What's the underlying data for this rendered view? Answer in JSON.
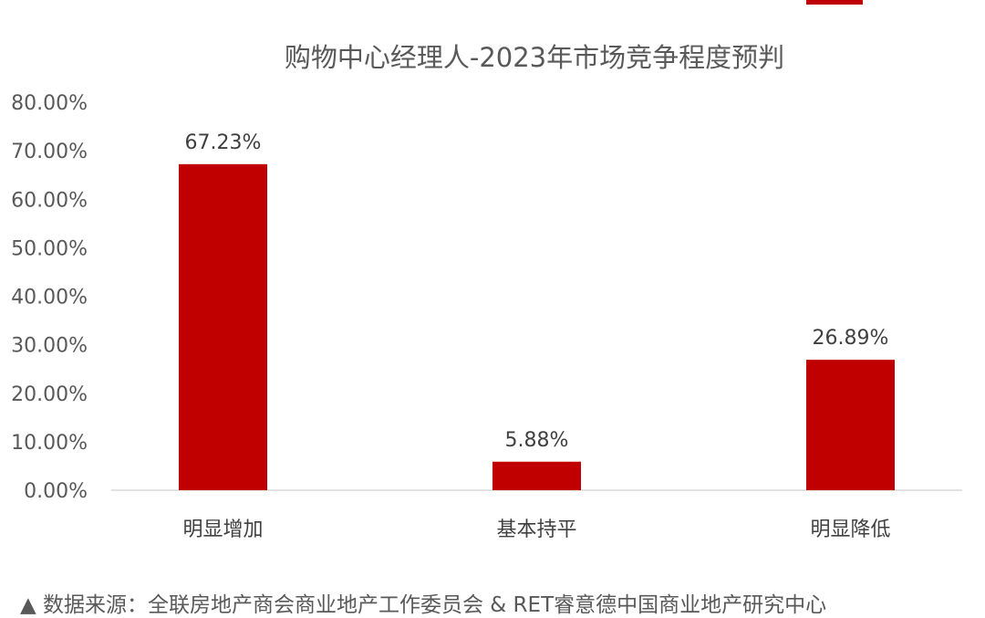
{
  "chart_data": {
    "type": "bar",
    "title": "购物中心经理人-2023年市场竞争程度预判",
    "categories": [
      "明显增加",
      "基本持平",
      "明显降低"
    ],
    "values": [
      67.23,
      5.88,
      26.89
    ],
    "value_labels": [
      "67.23%",
      "5.88%",
      "26.89%"
    ],
    "y_ticks": [
      "0.00%",
      "10.00%",
      "20.00%",
      "30.00%",
      "40.00%",
      "50.00%",
      "60.00%",
      "70.00%",
      "80.00%"
    ],
    "ylim": [
      0,
      80
    ],
    "xlabel": "",
    "ylabel": "",
    "grid": false,
    "legend": "none",
    "bar_color": "#c00000"
  },
  "source_text": "▲ 数据来源：全联房地产商会商业地产工作委员会 & RET睿意德中国商业地产研究中心"
}
